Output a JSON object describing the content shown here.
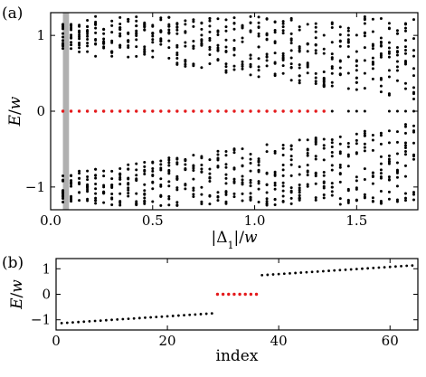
{
  "chart_data": [
    {
      "panel": "(a)",
      "type": "scatter",
      "xlabel_parts": [
        "|Δ",
        "1",
        "|/",
        "w"
      ],
      "ylabel_parts": [
        "E",
        "/",
        "w"
      ],
      "xlim": [
        0,
        1.8
      ],
      "ylim": [
        -1.3,
        1.3
      ],
      "x_ticks": [
        0.0,
        0.5,
        1.0,
        1.5
      ],
      "x_tick_labels": [
        "0.0",
        "0.5",
        "1.0",
        "1.5"
      ],
      "y_ticks": [
        -1,
        0,
        1
      ],
      "y_tick_labels": [
        "−1",
        "0",
        "1"
      ],
      "highlight_band": {
        "x": [
          0.06,
          0.09
        ],
        "color": "#b0b0b0"
      },
      "x_samples": {
        "start": 0.06,
        "step": 0.04,
        "count": 44
      },
      "bulk_band_edge_min": 0.72,
      "zero_mode_color": "#e41a1c",
      "bulk_color": "#000000",
      "zero_mode_x_range": [
        0.06,
        1.35
      ]
    },
    {
      "panel": "(b)",
      "type": "scatter",
      "xlabel": "index",
      "ylabel_parts": [
        "E",
        "/",
        "w"
      ],
      "xlim": [
        0,
        65
      ],
      "ylim": [
        -1.4,
        1.4
      ],
      "x_ticks": [
        0,
        20,
        40,
        60
      ],
      "x_tick_labels": [
        "0",
        "20",
        "40",
        "60"
      ],
      "y_ticks": [
        -1,
        0,
        1
      ],
      "y_tick_labels": [
        "−1",
        "0",
        "1"
      ],
      "lower_band": {
        "index_start": 1,
        "index_end": 28,
        "E_start": -1.13,
        "E_end": -0.75
      },
      "zero_modes": {
        "index_start": 29,
        "index_end": 36,
        "E": 0
      },
      "upper_band": {
        "index_start": 37,
        "index_end": 64,
        "E_start": 0.75,
        "E_end": 1.13
      },
      "zero_mode_color": "#e41a1c",
      "bulk_color": "#000000"
    }
  ]
}
